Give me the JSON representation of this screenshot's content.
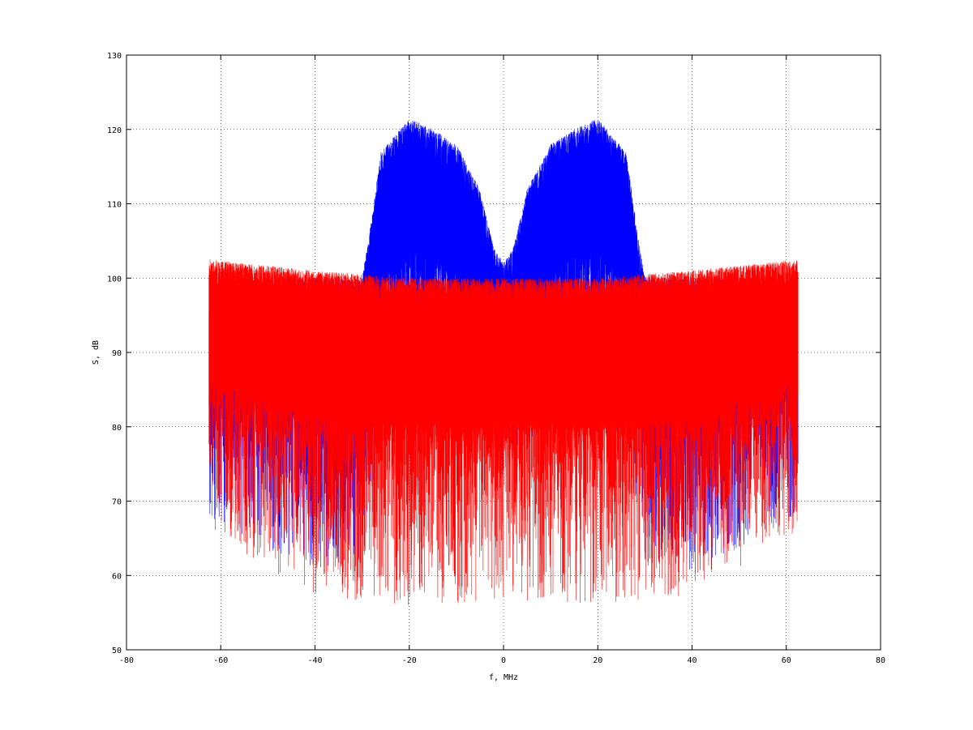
{
  "chart_data": {
    "type": "line",
    "title": "",
    "xlabel": "f, MHz",
    "ylabel": "S, dB",
    "xlim": [
      -80,
      80
    ],
    "ylim": [
      50,
      130
    ],
    "xticks": [
      -80,
      -60,
      -40,
      -20,
      0,
      20,
      40,
      60,
      80
    ],
    "yticks": [
      50,
      60,
      70,
      80,
      90,
      100,
      110,
      120,
      130
    ],
    "xtick_labels": [
      "-80",
      "-60",
      "-40",
      "-20",
      "0",
      "20",
      "40",
      "60",
      "80"
    ],
    "ytick_labels": [
      "50",
      "60",
      "70",
      "80",
      "90",
      "100",
      "110",
      "120",
      "130"
    ],
    "grid": true,
    "legend": null,
    "series": [
      {
        "color": "#0000ff",
        "style": "noise-spectrum",
        "x_range": [
          -62.5,
          62.5
        ],
        "envelope": {
          "x": [
            -62.5,
            -40,
            -30,
            -28,
            -26,
            -20,
            -15,
            -10,
            -5,
            -2,
            0,
            2,
            5,
            10,
            15,
            20,
            26,
            28,
            30,
            40,
            62.5
          ],
          "peak": [
            100,
            100,
            100,
            108,
            117,
            121.5,
            120,
            118,
            112,
            104,
            102,
            104,
            112,
            118,
            120,
            121.5,
            117,
            108,
            100,
            100,
            100
          ],
          "floor": [
            68,
            60,
            62,
            70,
            78,
            82,
            82,
            80,
            78,
            75,
            72,
            75,
            78,
            80,
            82,
            82,
            78,
            70,
            62,
            60,
            68
          ]
        }
      },
      {
        "color": "#ff0000",
        "style": "noise-spectrum",
        "x_range": [
          -62.5,
          62.5
        ],
        "envelope": {
          "x": [
            -62.5,
            -40,
            -20,
            0,
            20,
            40,
            62.5
          ],
          "peak": [
            102.5,
            101,
            100,
            100,
            100,
            101,
            102.5
          ],
          "floor": [
            66,
            57,
            56,
            56.5,
            56,
            57,
            66
          ]
        }
      }
    ]
  }
}
